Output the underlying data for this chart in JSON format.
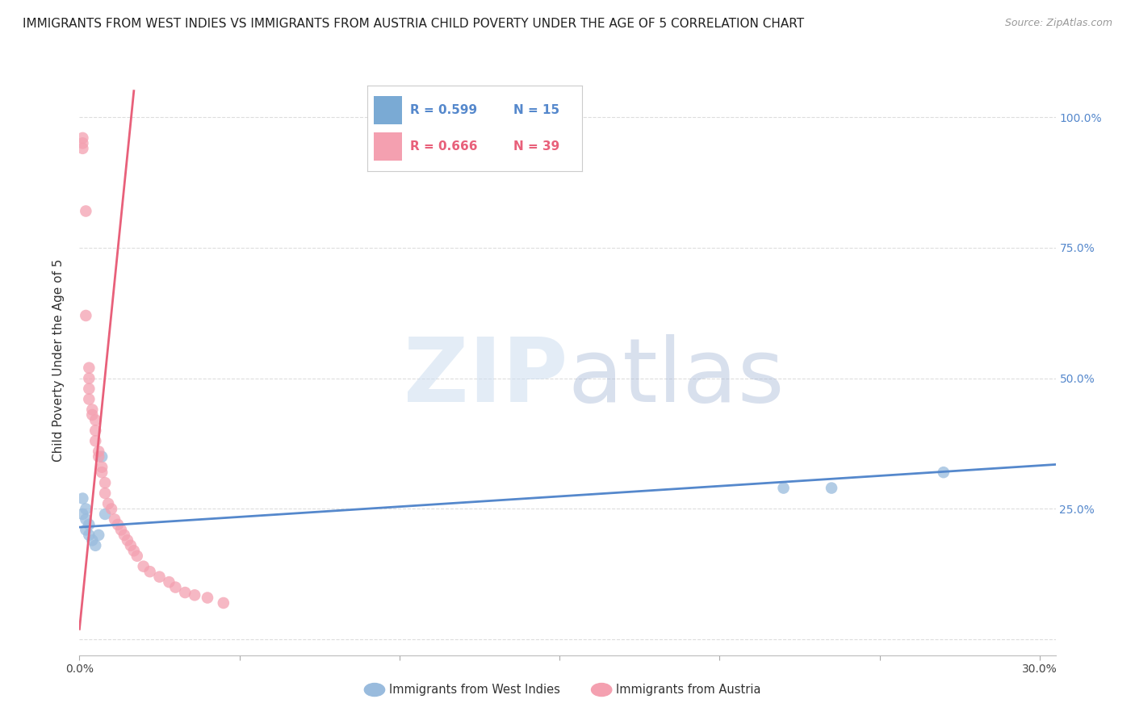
{
  "title": "IMMIGRANTS FROM WEST INDIES VS IMMIGRANTS FROM AUSTRIA CHILD POVERTY UNDER THE AGE OF 5 CORRELATION CHART",
  "source": "Source: ZipAtlas.com",
  "ylabel": "Child Poverty Under the Age of 5",
  "xlim": [
    0.0,
    0.305
  ],
  "ylim": [
    -0.03,
    1.1
  ],
  "xtick_vals": [
    0.0,
    0.05,
    0.1,
    0.15,
    0.2,
    0.25,
    0.3
  ],
  "xticklabels": [
    "0.0%",
    "",
    "",
    "",
    "",
    "",
    "30.0%"
  ],
  "ytick_vals": [
    0.0,
    0.25,
    0.5,
    0.75,
    1.0
  ],
  "yticklabels_right": [
    "",
    "25.0%",
    "50.0%",
    "75.0%",
    "100.0%"
  ],
  "background_color": "#ffffff",
  "grid_color": "#dddddd",
  "legend_R1": "R = 0.599",
  "legend_N1": "N = 15",
  "legend_R2": "R = 0.666",
  "legend_N2": "N = 39",
  "legend_color1": "#7aaad4",
  "legend_color2": "#f4a0b0",
  "series1_color": "#99bbdd",
  "series2_color": "#f4a0b0",
  "series1_label": "Immigrants from West Indies",
  "series2_label": "Immigrants from Austria",
  "line1_color": "#5588cc",
  "line2_color": "#e8607a",
  "title_fontsize": 11,
  "axis_label_fontsize": 11,
  "tick_fontsize": 10,
  "source_fontsize": 9,
  "west_indies_x": [
    0.001,
    0.001,
    0.002,
    0.002,
    0.002,
    0.003,
    0.003,
    0.004,
    0.005,
    0.006,
    0.007,
    0.008,
    0.22,
    0.235,
    0.27
  ],
  "west_indies_y": [
    0.27,
    0.24,
    0.25,
    0.23,
    0.21,
    0.22,
    0.2,
    0.19,
    0.18,
    0.2,
    0.35,
    0.24,
    0.29,
    0.29,
    0.32
  ],
  "austria_x": [
    0.001,
    0.001,
    0.001,
    0.002,
    0.002,
    0.003,
    0.003,
    0.003,
    0.003,
    0.004,
    0.004,
    0.005,
    0.005,
    0.005,
    0.006,
    0.006,
    0.007,
    0.007,
    0.008,
    0.008,
    0.009,
    0.01,
    0.011,
    0.012,
    0.013,
    0.014,
    0.015,
    0.016,
    0.017,
    0.018,
    0.02,
    0.022,
    0.025,
    0.028,
    0.03,
    0.033,
    0.036,
    0.04,
    0.045
  ],
  "austria_y": [
    0.96,
    0.95,
    0.94,
    0.82,
    0.62,
    0.52,
    0.5,
    0.48,
    0.46,
    0.44,
    0.43,
    0.42,
    0.4,
    0.38,
    0.36,
    0.35,
    0.33,
    0.32,
    0.3,
    0.28,
    0.26,
    0.25,
    0.23,
    0.22,
    0.21,
    0.2,
    0.19,
    0.18,
    0.17,
    0.16,
    0.14,
    0.13,
    0.12,
    0.11,
    0.1,
    0.09,
    0.085,
    0.08,
    0.07
  ]
}
